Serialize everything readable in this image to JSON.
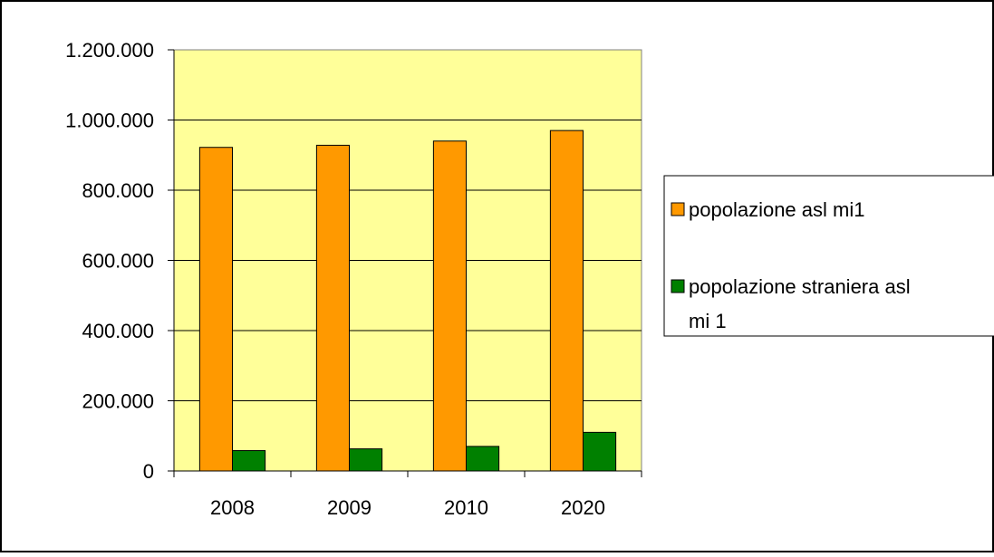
{
  "chart_data": {
    "type": "bar",
    "title": "",
    "xlabel": "",
    "ylabel": "",
    "categories": [
      "2008",
      "2009",
      "2010",
      "2020"
    ],
    "series": [
      {
        "name": "popolazione asl mi1",
        "color": "#ff9900",
        "values": [
          922000,
          928000,
          940000,
          970000
        ]
      },
      {
        "name": "popolazione straniera asl mi 1",
        "color": "#008000",
        "values": [
          58000,
          63000,
          70000,
          110000
        ]
      }
    ],
    "ylim": [
      0,
      1200000
    ],
    "yticks": [
      0,
      200000,
      400000,
      600000,
      800000,
      1000000,
      1200000
    ],
    "ytick_labels": [
      "0",
      "200.000",
      "400.000",
      "600.000",
      "800.000",
      "1.000.000",
      "1.200.000"
    ],
    "grid": true,
    "plot_background": "#ffff99",
    "legend_position": "right",
    "legend_lines": [
      [
        "popolazione asl mi1"
      ],
      [
        "popolazione straniera asl",
        "mi 1"
      ]
    ]
  }
}
